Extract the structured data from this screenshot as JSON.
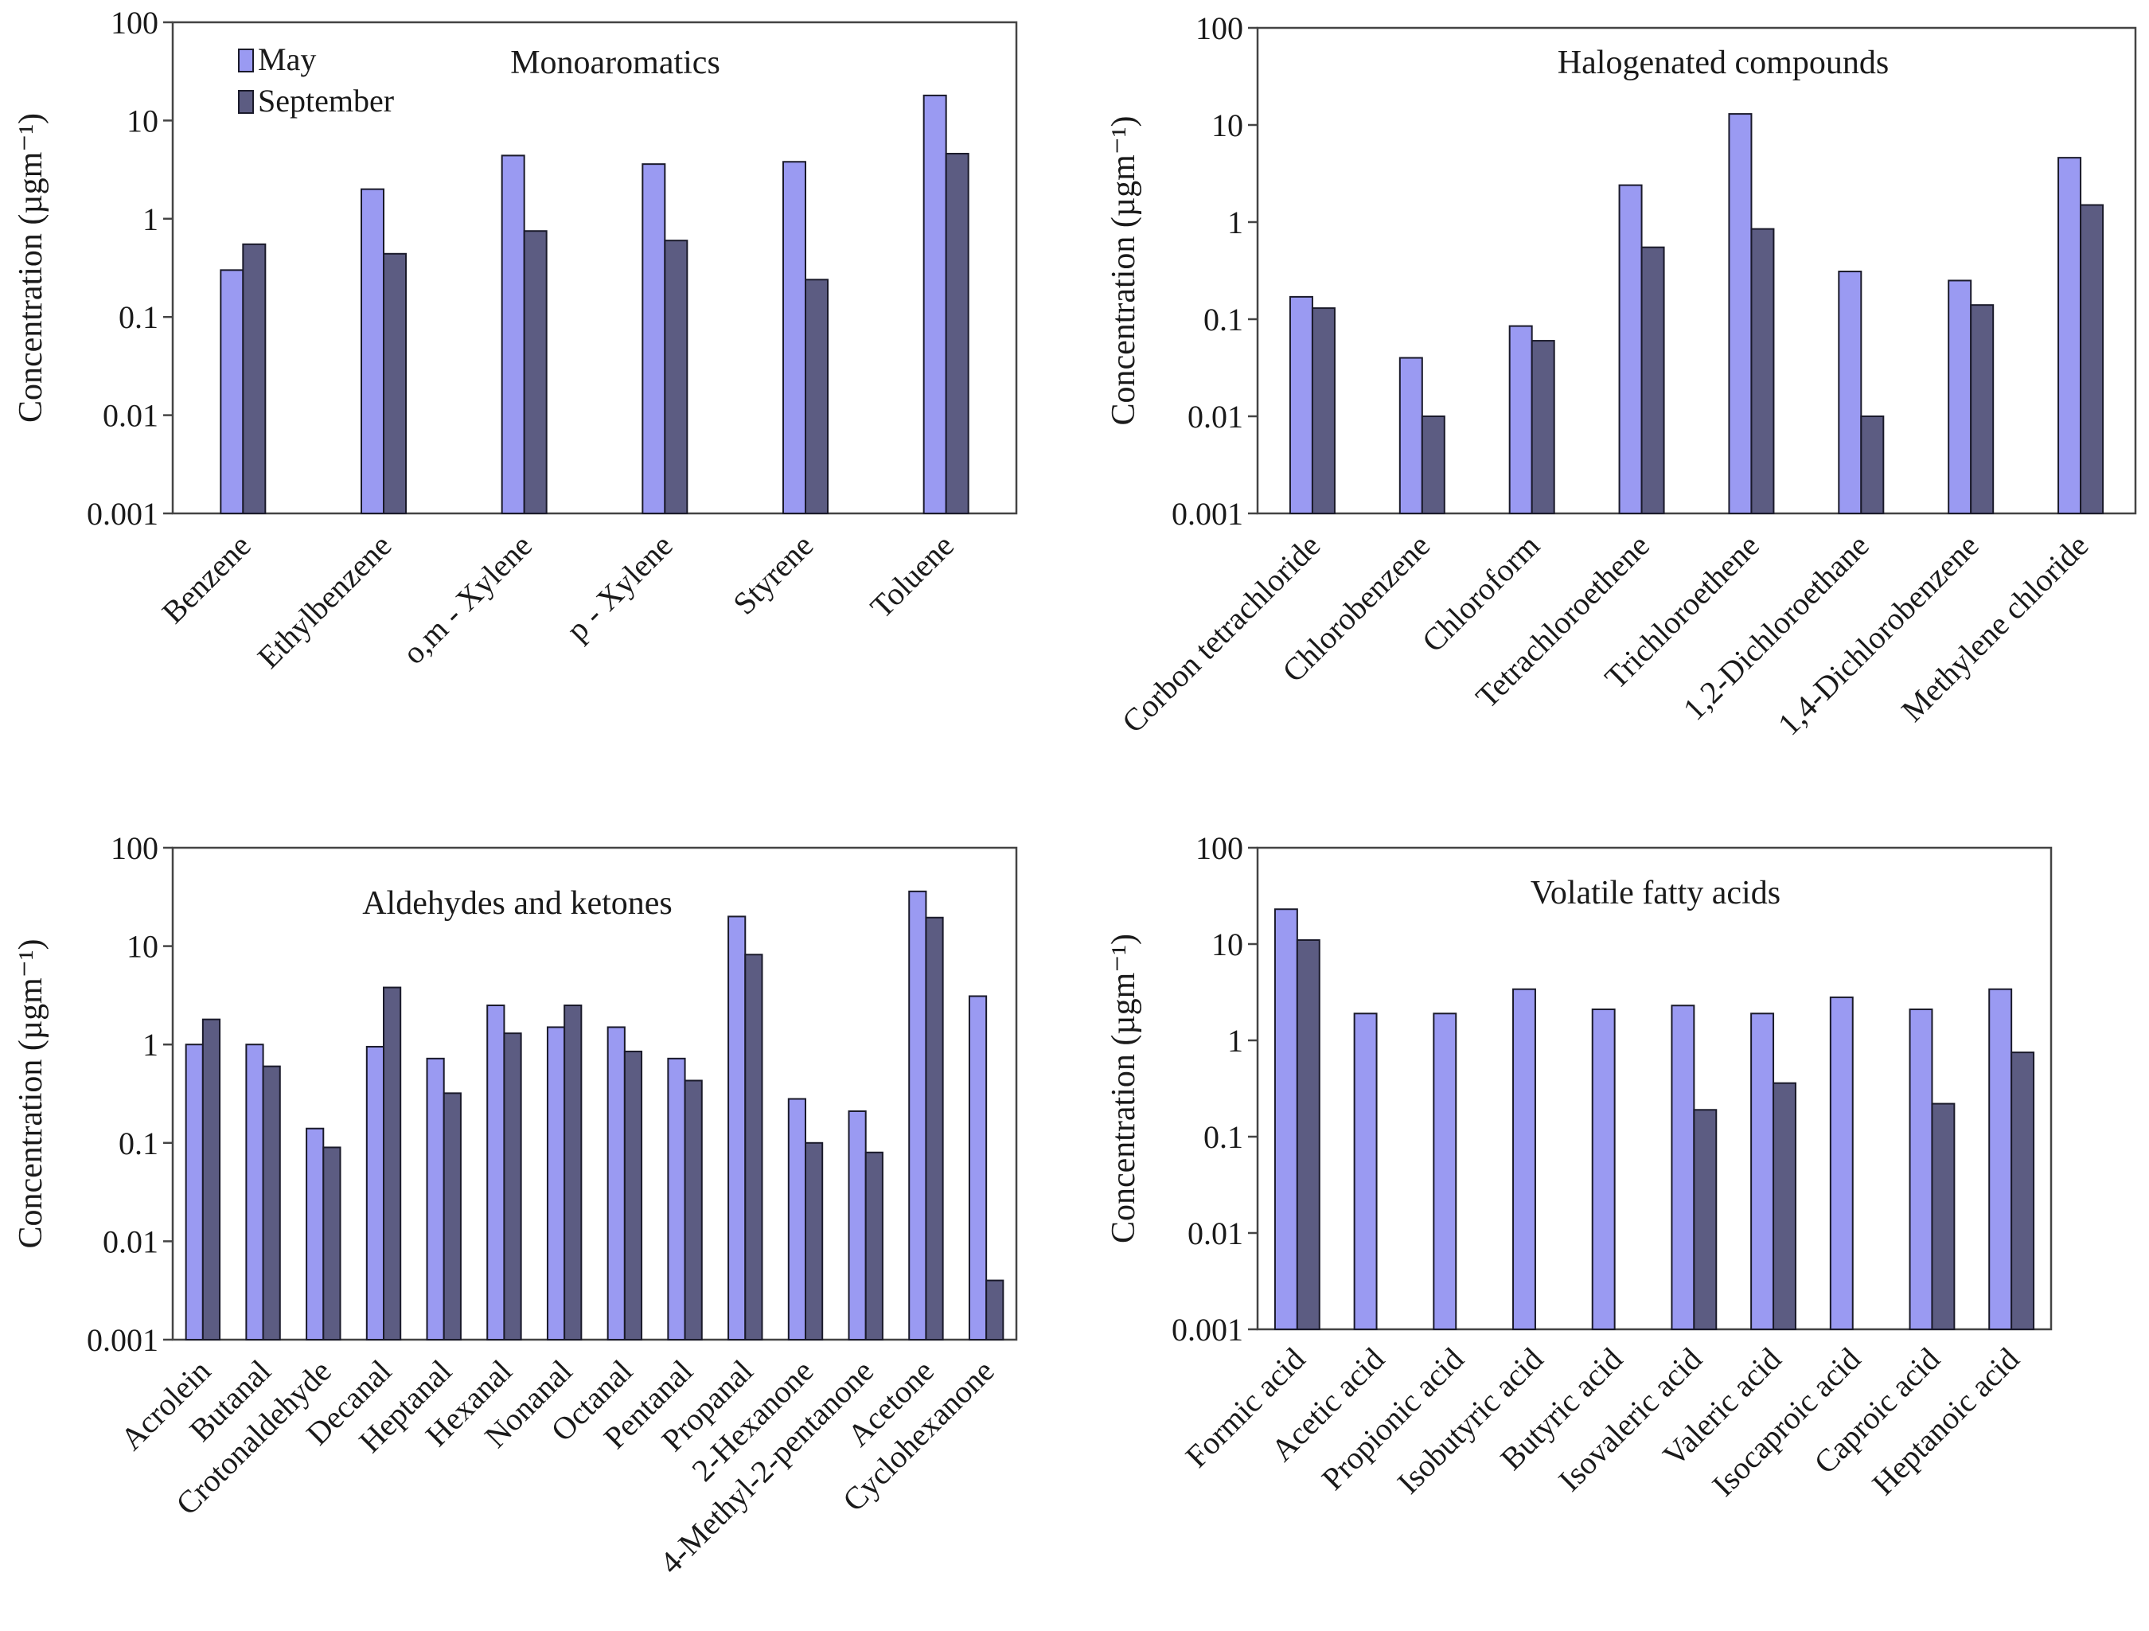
{
  "colors": {
    "may": "#9a9af2",
    "september": "#5c5c82"
  },
  "legend": {
    "may": "May",
    "september": "September"
  },
  "chart_data": [
    {
      "type": "bar",
      "title": "Monoaromatics",
      "ylabel": "Concentration (µgm⁻¹)",
      "yscale": "log",
      "ylim": [
        0.001,
        100
      ],
      "yticks": [
        "0.001",
        "0.01",
        "0.1",
        "1",
        "10",
        "100"
      ],
      "legend_position": "top-left",
      "categories": [
        "Benzene",
        "Ethylbenzene",
        "o,m - Xylene",
        "p - Xylene",
        "Styrene",
        "Toluene"
      ],
      "series": [
        {
          "name": "May",
          "values": [
            0.3,
            2.0,
            4.4,
            3.6,
            3.8,
            18
          ]
        },
        {
          "name": "September",
          "values": [
            0.55,
            0.44,
            0.75,
            0.6,
            0.24,
            4.6
          ]
        }
      ]
    },
    {
      "type": "bar",
      "title": "Halogenated compounds",
      "ylabel": "Concentration (µgm⁻¹)",
      "yscale": "log",
      "ylim": [
        0.001,
        100
      ],
      "yticks": [
        "0.001",
        "0.01",
        "0.1",
        "1",
        "10",
        "100"
      ],
      "categories": [
        "Corbon tetrachloride",
        "Chlorobenzene",
        "Chloroform",
        "Tetrachloroethene",
        "Trichloroethene",
        "1,2-Dichloroethane",
        "1,4-Dichlorobenzene",
        "Methylene chloride"
      ],
      "series": [
        {
          "name": "May",
          "values": [
            0.17,
            0.04,
            0.085,
            2.4,
            13,
            0.31,
            0.25,
            4.6
          ]
        },
        {
          "name": "September",
          "values": [
            0.13,
            0.01,
            0.06,
            0.55,
            0.85,
            0.01,
            0.14,
            1.5
          ]
        }
      ]
    },
    {
      "type": "bar",
      "title": "Aldehydes and ketones",
      "ylabel": "Concentration (µgm⁻¹)",
      "yscale": "log",
      "ylim": [
        0.001,
        100
      ],
      "yticks": [
        "0.001",
        "0.01",
        "0.1",
        "1",
        "10",
        "100"
      ],
      "categories": [
        "Acrolein",
        "Butanal",
        "Crotonaldehyde",
        "Decanal",
        "Heptanal",
        "Hexanal",
        "Nonanal",
        "Octanal",
        "Pentanal",
        "Propanal",
        "2-Hexanone",
        "4-Methyl-2-pentanone",
        "Acetone",
        "Cyclohexanone"
      ],
      "series": [
        {
          "name": "May",
          "values": [
            1.0,
            1.0,
            0.14,
            0.95,
            0.72,
            2.5,
            1.5,
            1.5,
            0.72,
            20,
            0.28,
            0.21,
            36,
            3.1
          ]
        },
        {
          "name": "September",
          "values": [
            1.8,
            0.6,
            0.09,
            3.8,
            0.32,
            1.3,
            2.5,
            0.85,
            0.43,
            8.2,
            0.1,
            0.08,
            19.5,
            0.004
          ]
        }
      ]
    },
    {
      "type": "bar",
      "title": "Volatile fatty acids",
      "ylabel": "Concentration (µgm⁻¹)",
      "yscale": "log",
      "ylim": [
        0.001,
        100
      ],
      "yticks": [
        "0.001",
        "0.01",
        "0.1",
        "1",
        "10",
        "100"
      ],
      "categories": [
        "Formic acid",
        "Acetic acid",
        "Propionic acid",
        "Isobutyric acid",
        "Butyric acid",
        "Isovaleric acid",
        "Valeric acid",
        "Isocaproic acid",
        "Caproic acid",
        "Heptanoic acid"
      ],
      "series": [
        {
          "name": "May",
          "values": [
            23,
            1.9,
            1.9,
            3.4,
            2.1,
            2.3,
            1.9,
            2.8,
            2.1,
            3.4
          ]
        },
        {
          "name": "September",
          "values": [
            11,
            null,
            null,
            null,
            null,
            0.19,
            0.36,
            null,
            0.22,
            0.75
          ]
        }
      ]
    }
  ]
}
